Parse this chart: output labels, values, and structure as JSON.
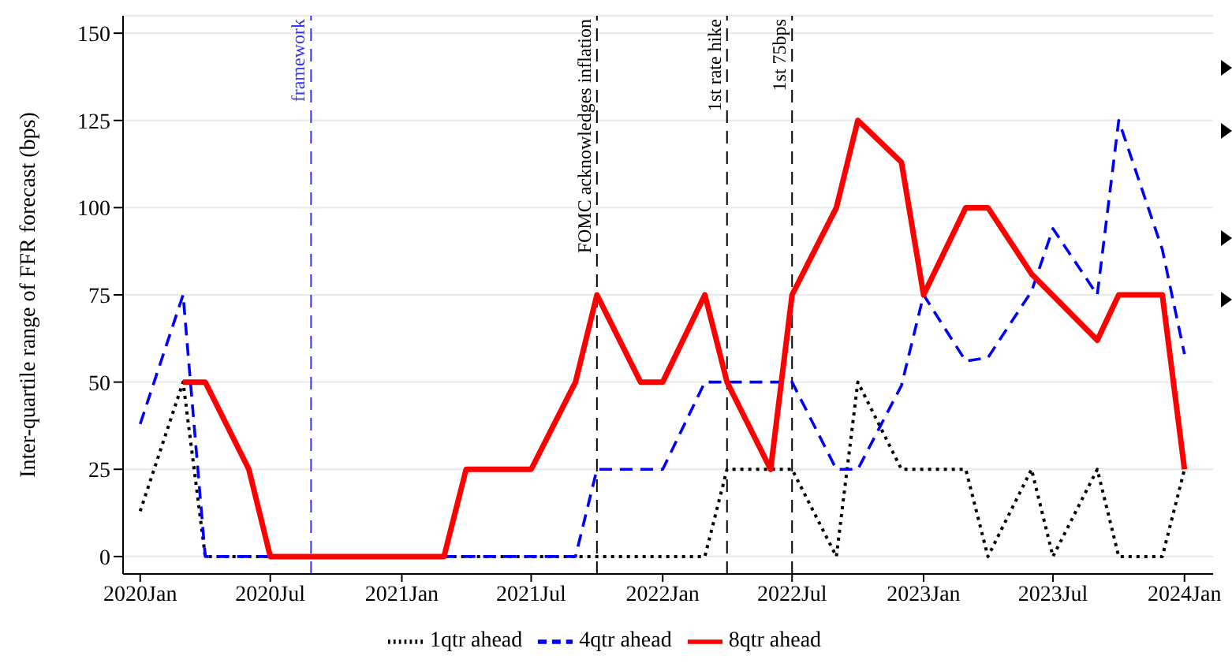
{
  "chart_data": {
    "type": "line",
    "ylabel": "Inter-quartile range of FFR forecast (bps)",
    "xlim": [
      "2019-12-08",
      "2024-02-10"
    ],
    "xticks": [
      {
        "value": "2020-01",
        "label": "2020Jan"
      },
      {
        "value": "2020-07",
        "label": "2020Jul"
      },
      {
        "value": "2021-01",
        "label": "2021Jan"
      },
      {
        "value": "2021-07",
        "label": "2021Jul"
      },
      {
        "value": "2022-01",
        "label": "2022Jan"
      },
      {
        "value": "2022-07",
        "label": "2022Jul"
      },
      {
        "value": "2023-01",
        "label": "2023Jan"
      },
      {
        "value": "2023-07",
        "label": "2023Jul"
      },
      {
        "value": "2024-01",
        "label": "2024Jan"
      }
    ],
    "ylim": [
      -5,
      155
    ],
    "yticks": [
      0,
      25,
      50,
      75,
      100,
      125,
      150
    ],
    "grid": "y",
    "legend": "bottom",
    "marker": "none",
    "series": [
      {
        "name": "1qtr ahead",
        "color": "#000000",
        "line_style": "dotted",
        "x": [
          "2020-01",
          "2020-03",
          "2020-04",
          "2022-03",
          "2022-04",
          "2022-07",
          "2022-09",
          "2022-10",
          "2022-12",
          "2023-03",
          "2023-04",
          "2023-06",
          "2023-07",
          "2023-09",
          "2023-10",
          "2023-12",
          "2024-01"
        ],
        "values": [
          13,
          50,
          0,
          0,
          25,
          25,
          0,
          50,
          25,
          25,
          0,
          25,
          0,
          25,
          0,
          0,
          25
        ]
      },
      {
        "name": "4qtr ahead",
        "color": "#0000ff",
        "line_style": "dashed",
        "x": [
          "2020-01",
          "2020-03",
          "2020-04",
          "2021-09",
          "2021-10",
          "2022-01",
          "2022-03",
          "2022-07",
          "2022-09",
          "2022-10",
          "2022-12",
          "2023-01",
          "2023-03",
          "2023-04",
          "2023-06",
          "2023-07",
          "2023-09",
          "2023-10",
          "2023-12",
          "2024-01"
        ],
        "values": [
          38,
          75,
          0,
          0,
          25,
          25,
          50,
          50,
          25,
          25,
          49,
          75,
          56,
          57,
          76,
          94,
          75,
          125,
          88,
          58
        ]
      },
      {
        "name": "8qtr ahead",
        "color": "#ff0000",
        "line_style": "solid",
        "x": [
          "2020-03",
          "2020-04",
          "2020-06",
          "2020-07",
          "2021-03",
          "2021-04",
          "2021-07",
          "2021-09",
          "2021-10",
          "2021-12",
          "2022-01",
          "2022-03",
          "2022-04",
          "2022-06",
          "2022-07",
          "2022-09",
          "2022-10",
          "2022-12",
          "2023-01",
          "2023-03",
          "2023-04",
          "2023-06",
          "2023-09",
          "2023-10",
          "2023-12",
          "2024-01"
        ],
        "values": [
          50,
          50,
          25,
          0,
          0,
          25,
          25,
          50,
          75,
          50,
          50,
          75,
          50,
          25,
          75,
          100,
          125,
          113,
          75,
          100,
          100,
          81,
          62,
          75,
          75,
          25
        ]
      }
    ],
    "ref_lines": [
      {
        "axis": "x",
        "value": "2020-08-27",
        "label": "framework",
        "color": "#3333ff",
        "line_style": "dashed"
      },
      {
        "axis": "x",
        "value": "2021-10",
        "label": "FOMC acknowledges inflation",
        "color": "#000000",
        "line_style": "dashed"
      },
      {
        "axis": "x",
        "value": "2022-04",
        "label": "1st rate hike",
        "color": "#000000",
        "line_style": "dashed"
      },
      {
        "axis": "x",
        "value": "2022-07",
        "label": "1st 75bps",
        "color": "#000000",
        "line_style": "dashed"
      }
    ]
  }
}
